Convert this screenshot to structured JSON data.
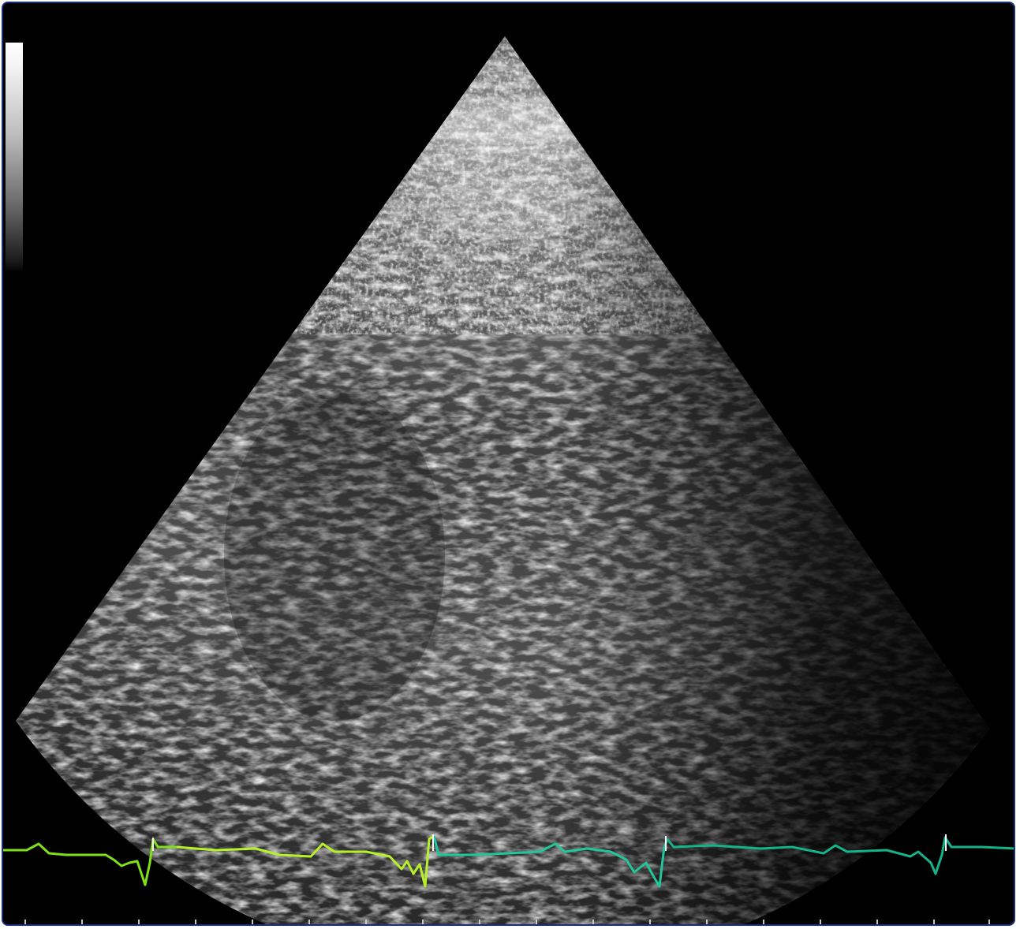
{
  "image": {
    "subject": "echocardiogram-sector",
    "ecg_trace": {
      "colors": [
        "#7fe01a",
        "#b8f02a",
        "#1fc79a",
        "#13b48a"
      ]
    },
    "colors": {
      "background": "#000000",
      "frame_border": "#1a2f7a",
      "ecg_green": "#6ad41a",
      "ecg_lime": "#c6f52a",
      "ecg_teal": "#1fbf95"
    }
  }
}
